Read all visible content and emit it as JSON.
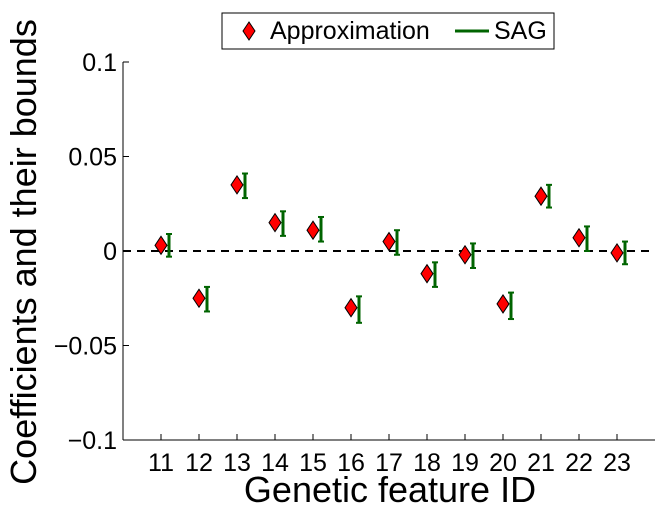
{
  "chart_data": {
    "type": "scatter",
    "xlabel": "Genetic feature ID",
    "ylabel": "Coefficients and their bounds",
    "ylim": [
      -0.1,
      0.1
    ],
    "yticks": [
      {
        "value": 0.1,
        "label": "0.1"
      },
      {
        "value": 0.05,
        "label": "0.05"
      },
      {
        "value": 0,
        "label": "0"
      },
      {
        "value": -0.05,
        "label": "−0.05"
      },
      {
        "value": -0.1,
        "label": "−0.1"
      }
    ],
    "categories": [
      "11",
      "12",
      "13",
      "14",
      "15",
      "16",
      "17",
      "18",
      "19",
      "20",
      "21",
      "22",
      "23"
    ],
    "reference_line": {
      "y": 0,
      "style": "dashed",
      "color": "#000000"
    },
    "legend": {
      "position": "top-center",
      "entries": [
        {
          "label": "Approximation",
          "marker": "diamond",
          "color": "#ff0000"
        },
        {
          "label": "SAG",
          "marker": "line",
          "color": "#006400"
        }
      ]
    },
    "series": [
      {
        "name": "Approximation",
        "marker": "diamond",
        "color": "#ff0000",
        "values": [
          0.003,
          -0.025,
          0.035,
          0.015,
          0.011,
          -0.03,
          0.005,
          -0.012,
          -0.002,
          -0.028,
          0.029,
          0.007,
          -0.001
        ]
      },
      {
        "name": "SAG",
        "marker": "errorbar",
        "color": "#006400",
        "lower": [
          -0.003,
          -0.032,
          0.028,
          0.008,
          0.005,
          -0.038,
          -0.002,
          -0.019,
          -0.009,
          -0.036,
          0.023,
          0.0,
          -0.007
        ],
        "upper": [
          0.009,
          -0.019,
          0.041,
          0.021,
          0.018,
          -0.024,
          0.011,
          -0.006,
          0.004,
          -0.022,
          0.035,
          0.013,
          0.005
        ]
      }
    ]
  }
}
